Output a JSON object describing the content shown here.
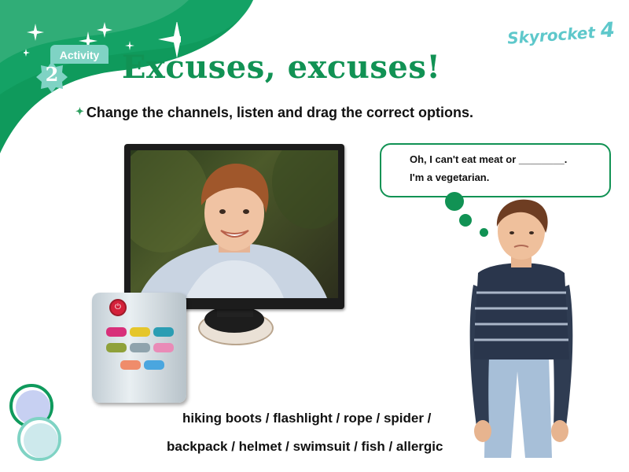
{
  "activity": {
    "label": "Activity",
    "number": "2"
  },
  "page": {
    "title": "Excuses, excuses!",
    "instruction": "Change the channels, listen and drag the correct options."
  },
  "brand": {
    "name": "Skyrocket",
    "level": "4"
  },
  "speech_bubble": {
    "line1": "Oh, I can't eat meat or ________.",
    "line2": "I'm a vegetarian."
  },
  "options": {
    "line1": "hiking boots / flashlight / rope / spider /",
    "line2": "backpack / helmet / swimsuit / fish / allergic"
  },
  "colors": {
    "brand_green": "#119254",
    "accent_teal": "#7fd3c4",
    "logo_cyan": "#5ec8cb"
  },
  "icons": [
    "power-icon",
    "sparkle-icon",
    "bullet-icon"
  ]
}
